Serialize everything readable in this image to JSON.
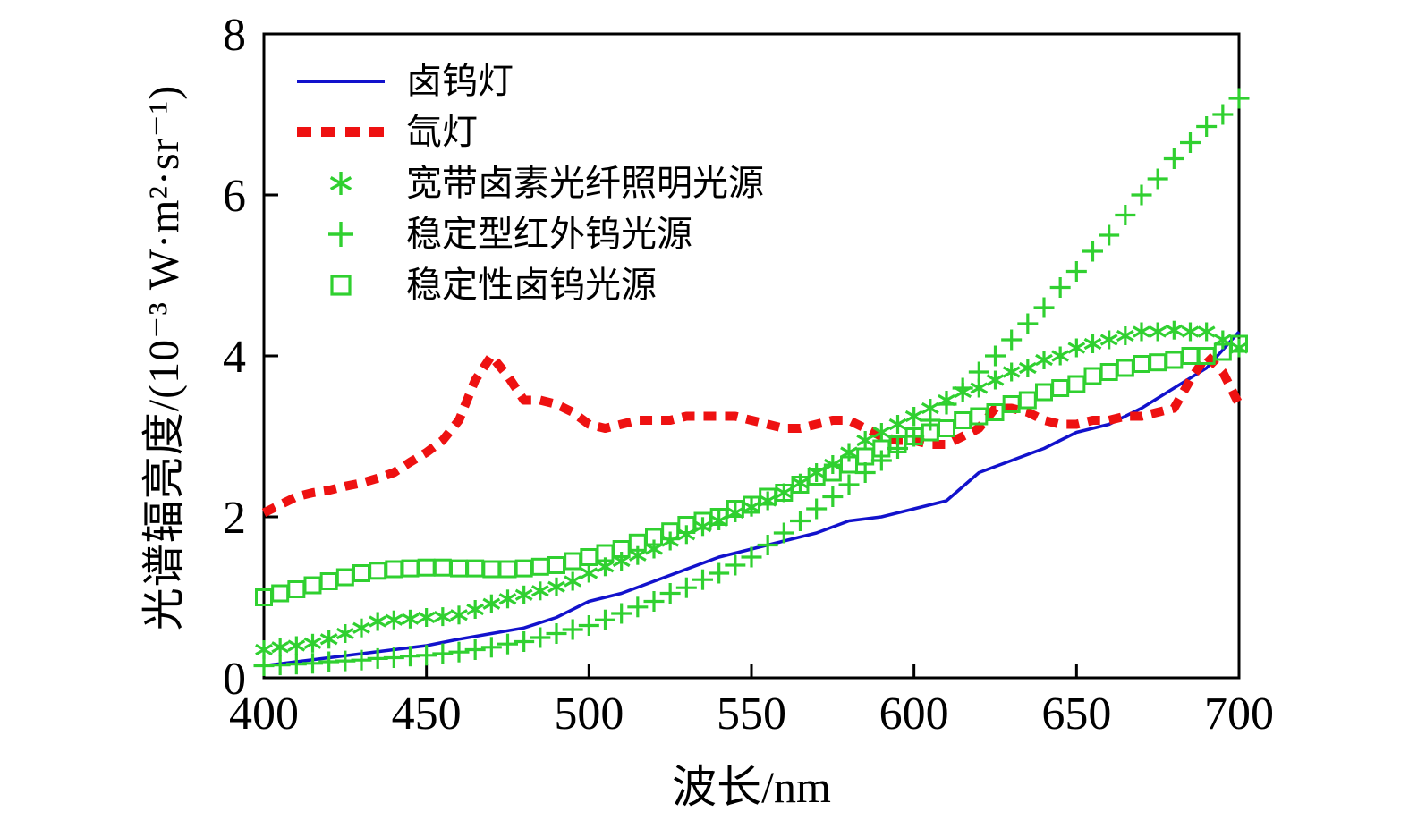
{
  "figure": {
    "background": "#ffffff",
    "axis_color": "#000000"
  },
  "chart_data": {
    "type": "line",
    "title": "",
    "xlabel": "波长/nm",
    "ylabel": "光谱辐亮度/(10⁻³ W·m²·sr⁻¹)",
    "xlim": [
      400,
      700
    ],
    "ylim": [
      0,
      8
    ],
    "xticks": [
      400,
      450,
      500,
      550,
      600,
      650,
      700
    ],
    "yticks": [
      0,
      2,
      4,
      6,
      8
    ],
    "grid": false,
    "legend_position": "upper-left",
    "series": [
      {
        "id": "halogen-tungsten-lamp",
        "name": "卤钨灯",
        "color": "#1212cc",
        "type": "line",
        "width": 3.5,
        "x": [
          400,
          410,
          420,
          430,
          440,
          450,
          460,
          470,
          480,
          490,
          500,
          510,
          520,
          530,
          540,
          550,
          560,
          570,
          580,
          590,
          600,
          610,
          620,
          630,
          640,
          650,
          660,
          670,
          680,
          690,
          700
        ],
        "y": [
          0.15,
          0.2,
          0.25,
          0.3,
          0.35,
          0.4,
          0.48,
          0.55,
          0.62,
          0.75,
          0.95,
          1.05,
          1.2,
          1.35,
          1.5,
          1.6,
          1.7,
          1.8,
          1.95,
          2.0,
          2.1,
          2.2,
          2.55,
          2.7,
          2.85,
          3.05,
          3.15,
          3.35,
          3.6,
          3.85,
          4.3
        ]
      },
      {
        "id": "xenon-lamp",
        "name": "氙灯",
        "color": "#ee1111",
        "type": "line",
        "width": 10,
        "dash": "14 10",
        "x": [
          400,
          405,
          410,
          415,
          420,
          425,
          430,
          435,
          440,
          445,
          450,
          455,
          460,
          465,
          470,
          475,
          480,
          485,
          490,
          495,
          500,
          505,
          510,
          515,
          520,
          525,
          530,
          535,
          540,
          545,
          550,
          555,
          560,
          565,
          570,
          575,
          580,
          585,
          590,
          595,
          600,
          605,
          610,
          615,
          620,
          625,
          630,
          635,
          640,
          645,
          650,
          655,
          660,
          665,
          670,
          675,
          680,
          685,
          690,
          695,
          700
        ],
        "y": [
          2.05,
          2.15,
          2.25,
          2.3,
          2.33,
          2.38,
          2.42,
          2.48,
          2.55,
          2.68,
          2.8,
          2.95,
          3.2,
          3.7,
          4.0,
          3.75,
          3.45,
          3.45,
          3.4,
          3.3,
          3.15,
          3.1,
          3.15,
          3.2,
          3.2,
          3.2,
          3.25,
          3.25,
          3.25,
          3.25,
          3.2,
          3.15,
          3.1,
          3.1,
          3.15,
          3.2,
          3.2,
          3.1,
          3.0,
          2.95,
          2.95,
          2.9,
          2.9,
          3.0,
          3.1,
          3.35,
          3.35,
          3.3,
          3.2,
          3.15,
          3.15,
          3.2,
          3.2,
          3.25,
          3.25,
          3.3,
          3.35,
          3.7,
          4.0,
          3.8,
          3.4
        ]
      },
      {
        "id": "broadband-halogen-fiber-source",
        "name": "宽带卤素光纤照明光源",
        "color": "#30d030",
        "type": "marker",
        "marker": "asterisk",
        "x": [
          400,
          405,
          410,
          415,
          420,
          425,
          430,
          435,
          440,
          445,
          450,
          455,
          460,
          465,
          470,
          475,
          480,
          485,
          490,
          495,
          500,
          505,
          510,
          515,
          520,
          525,
          530,
          535,
          540,
          545,
          550,
          555,
          560,
          565,
          570,
          575,
          580,
          585,
          590,
          595,
          600,
          605,
          610,
          615,
          620,
          625,
          630,
          635,
          640,
          645,
          650,
          655,
          660,
          665,
          670,
          675,
          680,
          685,
          690,
          695,
          700
        ],
        "y": [
          0.35,
          0.38,
          0.4,
          0.43,
          0.48,
          0.55,
          0.62,
          0.7,
          0.72,
          0.73,
          0.75,
          0.76,
          0.78,
          0.85,
          0.92,
          0.98,
          1.03,
          1.08,
          1.13,
          1.2,
          1.3,
          1.38,
          1.45,
          1.52,
          1.6,
          1.7,
          1.78,
          1.88,
          1.95,
          2.05,
          2.12,
          2.2,
          2.3,
          2.42,
          2.55,
          2.65,
          2.8,
          2.95,
          3.05,
          3.15,
          3.25,
          3.35,
          3.45,
          3.55,
          3.6,
          3.7,
          3.8,
          3.85,
          3.95,
          4.0,
          4.1,
          4.15,
          4.2,
          4.25,
          4.3,
          4.3,
          4.32,
          4.3,
          4.3,
          4.2,
          4.1
        ]
      },
      {
        "id": "stable-infrared-tungsten-source",
        "name": "稳定型红外钨光源",
        "color": "#30d030",
        "type": "marker",
        "marker": "plus",
        "x": [
          400,
          405,
          410,
          415,
          420,
          425,
          430,
          435,
          440,
          445,
          450,
          455,
          460,
          465,
          470,
          475,
          480,
          485,
          490,
          495,
          500,
          505,
          510,
          515,
          520,
          525,
          530,
          535,
          540,
          545,
          550,
          555,
          560,
          565,
          570,
          575,
          580,
          585,
          590,
          595,
          600,
          605,
          610,
          615,
          620,
          625,
          630,
          635,
          640,
          645,
          650,
          655,
          660,
          665,
          670,
          675,
          680,
          685,
          690,
          695,
          700
        ],
        "y": [
          0.15,
          0.16,
          0.17,
          0.18,
          0.2,
          0.21,
          0.22,
          0.24,
          0.25,
          0.27,
          0.28,
          0.3,
          0.32,
          0.35,
          0.38,
          0.42,
          0.45,
          0.5,
          0.55,
          0.6,
          0.65,
          0.72,
          0.8,
          0.88,
          0.95,
          1.05,
          1.12,
          1.22,
          1.3,
          1.4,
          1.5,
          1.65,
          1.8,
          1.95,
          2.1,
          2.25,
          2.4,
          2.55,
          2.7,
          2.85,
          3.0,
          3.2,
          3.4,
          3.6,
          3.8,
          4.0,
          4.2,
          4.4,
          4.6,
          4.85,
          5.05,
          5.3,
          5.5,
          5.75,
          6.0,
          6.2,
          6.45,
          6.65,
          6.85,
          7.0,
          7.2
        ]
      },
      {
        "id": "stable-halogen-tungsten-source",
        "name": "稳定性卤钨光源",
        "color": "#30d030",
        "type": "marker",
        "marker": "square",
        "x": [
          400,
          405,
          410,
          415,
          420,
          425,
          430,
          435,
          440,
          445,
          450,
          455,
          460,
          465,
          470,
          475,
          480,
          485,
          490,
          495,
          500,
          505,
          510,
          515,
          520,
          525,
          530,
          535,
          540,
          545,
          550,
          555,
          560,
          565,
          570,
          575,
          580,
          585,
          590,
          595,
          600,
          605,
          610,
          615,
          620,
          625,
          630,
          635,
          640,
          645,
          650,
          655,
          660,
          665,
          670,
          675,
          680,
          685,
          690,
          695,
          700
        ],
        "y": [
          1.0,
          1.05,
          1.1,
          1.15,
          1.2,
          1.25,
          1.3,
          1.33,
          1.35,
          1.36,
          1.37,
          1.37,
          1.36,
          1.36,
          1.35,
          1.35,
          1.36,
          1.38,
          1.4,
          1.45,
          1.5,
          1.55,
          1.6,
          1.68,
          1.75,
          1.82,
          1.9,
          1.95,
          2.0,
          2.1,
          2.15,
          2.25,
          2.3,
          2.4,
          2.5,
          2.55,
          2.65,
          2.75,
          2.85,
          2.9,
          3.0,
          3.05,
          3.1,
          3.2,
          3.25,
          3.3,
          3.4,
          3.45,
          3.55,
          3.6,
          3.65,
          3.75,
          3.8,
          3.85,
          3.9,
          3.92,
          3.95,
          4.0,
          4.0,
          4.05,
          4.15
        ]
      }
    ]
  }
}
